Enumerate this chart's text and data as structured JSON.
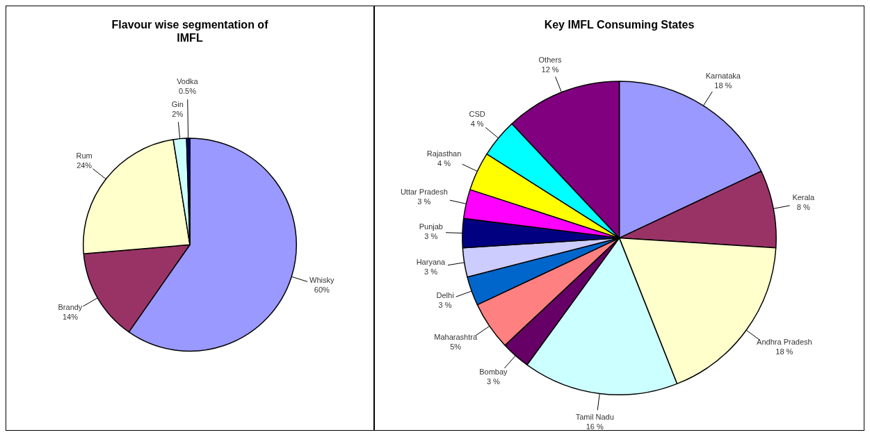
{
  "chart_data": [
    {
      "type": "pie",
      "title": "Flavour wise segmentation of IMFL",
      "categories": [
        "Whisky",
        "Brandy",
        "Rum",
        "Gin",
        "Vodka"
      ],
      "values": [
        60,
        14,
        24,
        2,
        0.5
      ],
      "value_labels": [
        "60%",
        "14%",
        "24%",
        "2%",
        "0.5%"
      ],
      "colors": [
        "#9999ff",
        "#993366",
        "#ffffcc",
        "#ccffff",
        "#000080"
      ]
    },
    {
      "type": "pie",
      "title": "Key IMFL Consuming States",
      "categories": [
        "Karnataka",
        "Kerala",
        "Andhra Pradesh",
        "Tamil Nadu",
        "Bombay",
        "Maharashtra",
        "Delhi",
        "Haryana",
        "Punjab",
        "Uttar Pradesh",
        "Rajasthan",
        "CSD",
        "Others"
      ],
      "values": [
        18,
        8,
        18,
        16,
        3,
        5,
        3,
        3,
        3,
        3,
        4,
        4,
        12
      ],
      "value_labels": [
        "18 %",
        "8 %",
        "18 %",
        "16 %",
        "3 %",
        "5%",
        "3 %",
        "3 %",
        "3 %",
        "3 %",
        "4 %",
        "4 %",
        "12 %"
      ],
      "colors": [
        "#9999ff",
        "#993366",
        "#ffffcc",
        "#ccffff",
        "#660066",
        "#ff8080",
        "#0066cc",
        "#ccccff",
        "#000080",
        "#ff00ff",
        "#ffff00",
        "#00ffff",
        "#800080"
      ]
    }
  ]
}
